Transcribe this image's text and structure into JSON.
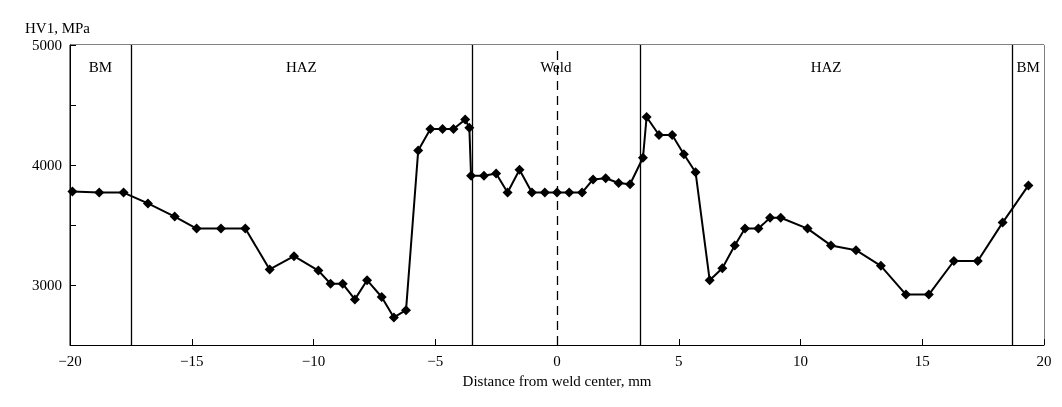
{
  "chart_data": {
    "type": "line",
    "xlabel": "Distance from weld center, mm",
    "ylabel": "HV1, MPa",
    "xlim": [
      -20,
      20
    ],
    "xticks": [
      -20,
      -15,
      -10,
      -5,
      0,
      5,
      10,
      15,
      20
    ],
    "ylim": [
      2500,
      5000
    ],
    "yticks": [
      3000,
      {
        "value": 3500,
        "label": null
      },
      4000,
      {
        "value": 4500,
        "label": null
      },
      5000
    ],
    "grid": false,
    "marker": "diamond",
    "line_style": "solid",
    "series": [
      {
        "color": "#000000",
        "x": [
          -19.9,
          -18.8,
          -17.8,
          -16.8,
          -15.7,
          -14.8,
          -13.8,
          -12.8,
          -11.8,
          -10.8,
          -9.8,
          -9.3,
          -8.8,
          -8.3,
          -7.8,
          -7.2,
          -6.7,
          -6.2,
          -5.7,
          -5.2,
          -4.7,
          -4.25,
          -3.77,
          -3.6,
          -3.53,
          -3.0,
          -2.5,
          -2.03,
          -1.54,
          -1.03,
          -0.5,
          0,
          0.5,
          1.03,
          1.48,
          2.0,
          2.53,
          3.0,
          3.53,
          3.68,
          4.19,
          4.73,
          5.21,
          5.69,
          6.27,
          6.79,
          7.3,
          7.72,
          8.27,
          8.75,
          9.19,
          10.29,
          11.25,
          12.28,
          13.3,
          14.33,
          15.27,
          16.3,
          17.28,
          18.3,
          19.36
        ],
        "values": [
          3780,
          3770,
          3770,
          3680,
          3570,
          3470,
          3470,
          3470,
          3130,
          3240,
          3120,
          3010,
          3010,
          2880,
          3040,
          2900,
          2730,
          2790,
          4120,
          4300,
          4300,
          4300,
          4380,
          4310,
          3910,
          3910,
          3930,
          3770,
          3960,
          3770,
          3770,
          3770,
          3770,
          3770,
          3880,
          3890,
          3850,
          3840,
          4060,
          4400,
          4250,
          4250,
          4090,
          3940,
          3040,
          3140,
          3330,
          3470,
          3470,
          3560,
          3560,
          3470,
          3330,
          3290,
          3160,
          2920,
          2920,
          3200,
          3200,
          3520,
          3830
        ]
      }
    ],
    "ref_lines": [
      {
        "axis": "x",
        "value": -17.5,
        "label": null,
        "line_style": "solid",
        "color": "#000000"
      },
      {
        "axis": "x",
        "value": -3.5,
        "label": null,
        "line_style": "solid",
        "color": "#000000"
      },
      {
        "axis": "x",
        "value": 0,
        "label": null,
        "line_style": "dashed",
        "color": "#000000"
      },
      {
        "axis": "x",
        "value": 3.4,
        "label": null,
        "line_style": "solid",
        "color": "#000000"
      },
      {
        "axis": "x",
        "value": 18.7,
        "label": null,
        "line_style": "solid",
        "color": "#000000"
      }
    ],
    "bands": [
      {
        "axis": "x",
        "from": -20,
        "to": -17.5,
        "label": "BM",
        "color": "#ffffff"
      },
      {
        "axis": "x",
        "from": -17.5,
        "to": -3.5,
        "label": "HAZ",
        "color": "#ffffff"
      },
      {
        "axis": "x",
        "from": -3.5,
        "to": 3.4,
        "label": "Weld",
        "color": "#ffffff"
      },
      {
        "axis": "x",
        "from": 3.4,
        "to": 18.7,
        "label": "HAZ",
        "color": "#ffffff"
      },
      {
        "axis": "x",
        "from": 18.7,
        "to": 20,
        "label": "BM",
        "color": "#ffffff"
      }
    ]
  }
}
